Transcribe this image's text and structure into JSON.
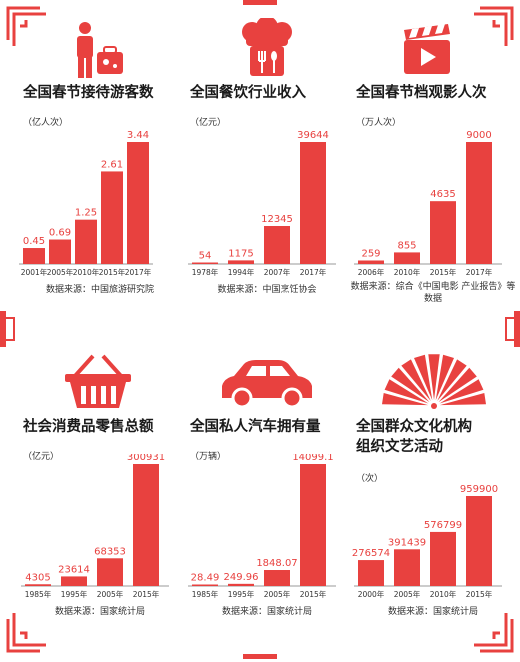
{
  "colors": {
    "accent": "#e8413f",
    "frame": "#e8413f",
    "axis": "#999999",
    "text": "#333333"
  },
  "panels": [
    {
      "title": "全国春节接待游客数",
      "unit": "（亿人次）",
      "source": "数据来源：中国旅游研究院",
      "icon": "tourist-luggage-icon"
    },
    {
      "title": "全国餐饮行业收入",
      "unit": "（亿元）",
      "source": "数据来源：中国烹饪协会",
      "icon": "chef-hat-utensils-icon"
    },
    {
      "title": "全国春节档观影人次",
      "unit": "（万人次）",
      "source": "数据来源：综合《中国电影\n产业报告》等数据",
      "icon": "movie-clapper-icon"
    },
    {
      "title": "社会消费品零售总额",
      "unit": "（亿元）",
      "source": "数据来源：国家统计局",
      "icon": "shopping-basket-icon"
    },
    {
      "title": "全国私人汽车拥有量",
      "unit": "（万辆）",
      "source": "数据来源：国家统计局",
      "icon": "car-icon"
    },
    {
      "title": "全国群众文化机构\n组织文艺活动",
      "unit": "（次）",
      "source": "数据来源：国家统计局",
      "icon": "folding-fan-icon"
    }
  ],
  "chart_data": [
    {
      "type": "bar",
      "categories": [
        "2001年",
        "2005年",
        "2010年",
        "2015年",
        "2017年"
      ],
      "values": [
        0.45,
        0.69,
        1.25,
        2.61,
        3.44
      ],
      "labels": [
        "0.45",
        "0.69",
        "1.25",
        "2.61",
        "3.44"
      ],
      "title": "全国春节接待游客数",
      "ylabel": "（亿人次）"
    },
    {
      "type": "bar",
      "categories": [
        "1978年",
        "1994年",
        "2007年",
        "2017年"
      ],
      "values": [
        54,
        1175,
        12345,
        39644
      ],
      "labels": [
        "54",
        "1175",
        "12345",
        "39644"
      ],
      "title": "全国餐饮行业收入",
      "ylabel": "（亿元）"
    },
    {
      "type": "bar",
      "categories": [
        "2006年",
        "2010年",
        "2015年",
        "2017年"
      ],
      "values": [
        259,
        855,
        4635,
        9000
      ],
      "labels": [
        "259",
        "855",
        "4635",
        "9000"
      ],
      "title": "全国春节档观影人次",
      "ylabel": "（万人次）"
    },
    {
      "type": "bar",
      "categories": [
        "1985年",
        "1995年",
        "2005年",
        "2015年"
      ],
      "values": [
        4305,
        23614,
        68353,
        300931
      ],
      "labels": [
        "4305",
        "23614",
        "68353",
        "300931"
      ],
      "title": "社会消费品零售总额",
      "ylabel": "（亿元）"
    },
    {
      "type": "bar",
      "categories": [
        "1985年",
        "1995年",
        "2005年",
        "2015年"
      ],
      "values": [
        28.49,
        249.96,
        1848.07,
        14099.1
      ],
      "labels": [
        "28.49",
        "249.96",
        "1848.07",
        "14099.1"
      ],
      "title": "全国私人汽车拥有量",
      "ylabel": "（万辆）"
    },
    {
      "type": "bar",
      "categories": [
        "2000年",
        "2005年",
        "2010年",
        "2015年"
      ],
      "values": [
        276574,
        391439,
        576799,
        959900
      ],
      "labels": [
        "276574",
        "391439",
        "576799",
        "959900"
      ],
      "title": "全国群众文化机构组织文艺活动",
      "ylabel": "（次）"
    }
  ]
}
